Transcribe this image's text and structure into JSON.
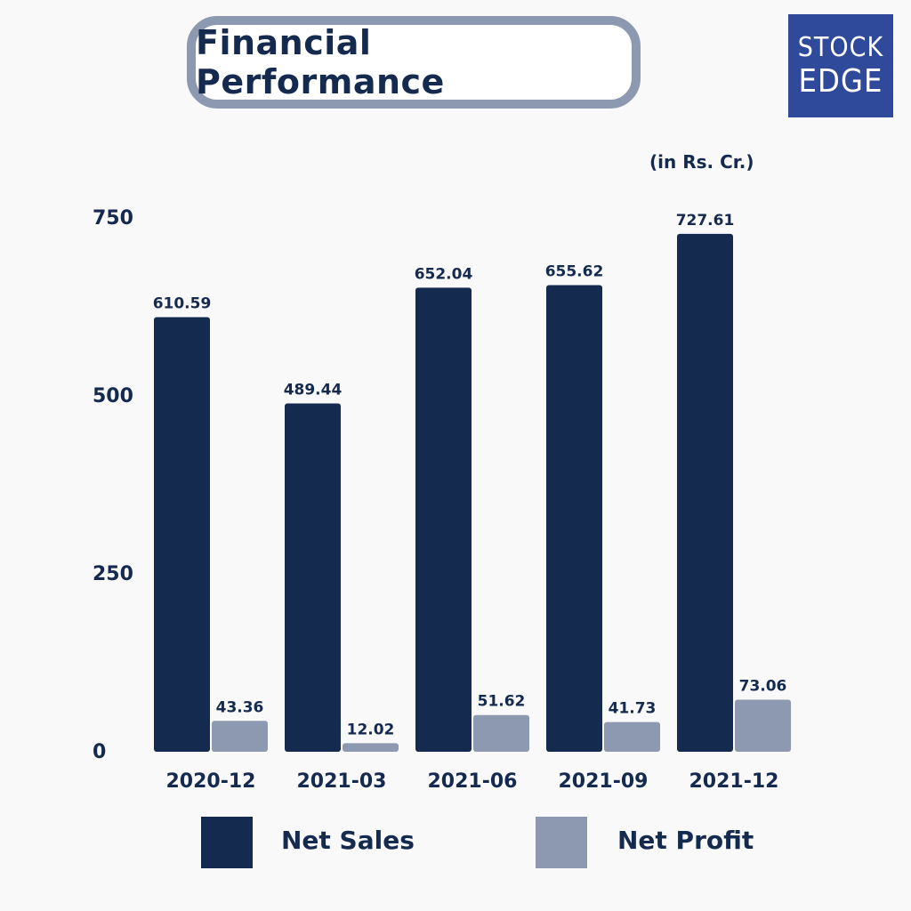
{
  "title": "Financial Performance",
  "logo": {
    "line1": "STOCK",
    "line2": "EDGE",
    "color": "#2f4a9a"
  },
  "unit_label": "(in Rs. Cr.)",
  "colors": {
    "net_sales": "#152a4f",
    "net_profit": "#8d99b0"
  },
  "chart_data": {
    "type": "bar",
    "categories": [
      "2020-12",
      "2021-03",
      "2021-06",
      "2021-09",
      "2021-12"
    ],
    "series": [
      {
        "name": "Net Sales",
        "values": [
          610.59,
          489.44,
          652.04,
          655.62,
          727.61
        ]
      },
      {
        "name": "Net Profit",
        "values": [
          43.36,
          12.02,
          51.62,
          41.73,
          73.06
        ]
      }
    ],
    "data_labels": [
      [
        "610.59",
        "489.44",
        "652.04",
        "655.62",
        "727.61"
      ],
      [
        "43.36",
        "12.02",
        "51.62",
        "41.73",
        "73.06"
      ]
    ],
    "y_ticks": [
      0,
      250,
      500,
      750
    ],
    "ylim": [
      0,
      750
    ],
    "grid": false,
    "legend_position": "bottom"
  }
}
